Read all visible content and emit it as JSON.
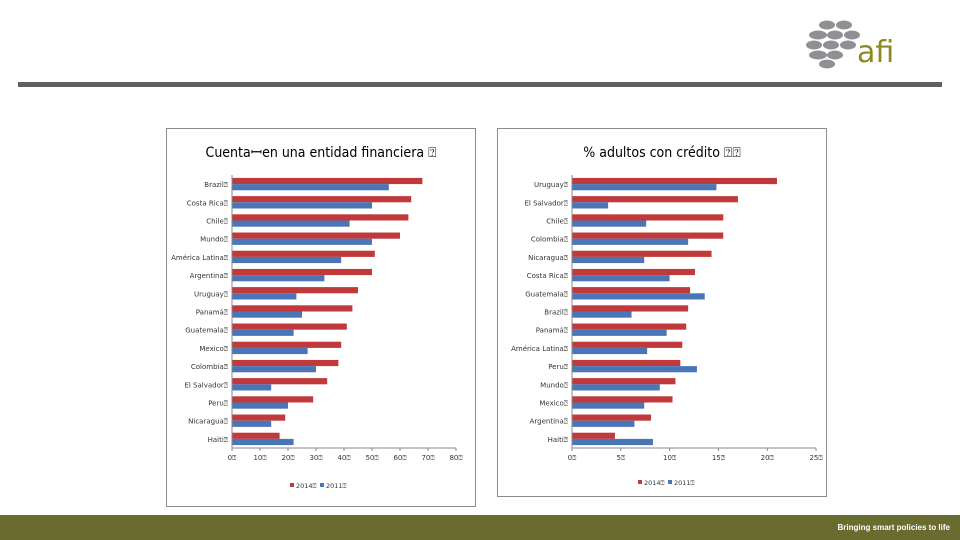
{
  "logo": {
    "text": "afi"
  },
  "colors": {
    "series_2014": "#c0393b",
    "series_2011": "#4a76b8",
    "rule": "#5f6163",
    "footer": "#6a6b2f"
  },
  "footer": {
    "tagline": "Bringing smart policies to life"
  },
  "chart_data": [
    {
      "type": "bar",
      "orientation": "horizontal",
      "title": "Cuentaꟷen una entidad financiera ⍰",
      "categories": [
        "Brazil",
        "Costa Rica",
        "Chile",
        "Mundo",
        "América Latina",
        "Argentina",
        "Uruguay",
        "Panamá",
        "Guatemala",
        "Mexico",
        "Colombia",
        "El Salvador",
        "Peru",
        "Nicaragua",
        "Haiti"
      ],
      "category_labels": [
        "Brazil⍰",
        "Costa Rica⍰",
        "Chile⍰",
        "Mundo⍰",
        "América Latina⍰",
        "Argentina⍰",
        "Uruguay⍰",
        "Panamá⍰",
        "Guatemala⍰",
        "Mexico⍰",
        "Colombia⍰",
        "El Salvador⍰",
        "Peru⍰",
        "Nicaragua⍰",
        "Haiti⍰"
      ],
      "series": [
        {
          "name": "2014",
          "legend_label": "2014⍰",
          "values": [
            68,
            64,
            63,
            60,
            51,
            50,
            45,
            43,
            41,
            39,
            38,
            34,
            29,
            19,
            17
          ]
        },
        {
          "name": "2011",
          "legend_label": "2011⍰",
          "values": [
            56,
            50,
            42,
            50,
            39,
            33,
            23,
            25,
            22,
            27,
            30,
            14,
            20,
            14,
            22
          ]
        }
      ],
      "xlim": [
        0,
        80
      ],
      "xticks": [
        "0⍰",
        "10⍰",
        "20⍰",
        "30⍰",
        "40⍰",
        "50⍰",
        "60⍰",
        "70⍰",
        "80⍰"
      ],
      "highlight": "Costa Rica",
      "legend": "bottom",
      "grid": false
    },
    {
      "type": "bar",
      "orientation": "horizontal",
      "title": "% adultos con crédito ⍰⍰",
      "categories": [
        "Uruguay",
        "El Salvador",
        "Chile",
        "Colombia",
        "Nicaragua",
        "Costa Rica",
        "Guatemala",
        "Brazil",
        "Panamá",
        "América Latina",
        "Peru",
        "Mundo",
        "Mexico",
        "Argentina",
        "Haiti"
      ],
      "category_labels": [
        "Uruguay⍰",
        "El Salvador⍰",
        "Chile⍰",
        "Colombia⍰",
        "Nicaragua⍰",
        "Costa Rica⍰",
        "Guatemala⍰",
        "Brazil⍰",
        "Panamá⍰",
        "América Latina⍰",
        "Peru⍰",
        "Mundo⍰",
        "Mexico⍰",
        "Argentina⍰",
        "Haiti⍰"
      ],
      "series": [
        {
          "name": "2014",
          "legend_label": "2014⍰",
          "values": [
            21,
            17,
            15.5,
            15.5,
            14.3,
            12.6,
            12.1,
            11.9,
            11.7,
            11.3,
            11.1,
            10.6,
            10.3,
            8.1,
            4.4
          ]
        },
        {
          "name": "2011",
          "legend_label": "2011⍰",
          "values": [
            14.8,
            3.7,
            7.6,
            11.9,
            7.4,
            10.0,
            13.6,
            6.1,
            9.7,
            7.7,
            12.8,
            9.0,
            7.4,
            6.4,
            8.3
          ]
        }
      ],
      "xlim": [
        0,
        25
      ],
      "xticks": [
        "0⍰",
        "5⍰",
        "10⍰",
        "15⍰",
        "20⍰",
        "25⍰"
      ],
      "highlight": "Costa Rica",
      "legend": "bottom",
      "grid": false
    }
  ]
}
